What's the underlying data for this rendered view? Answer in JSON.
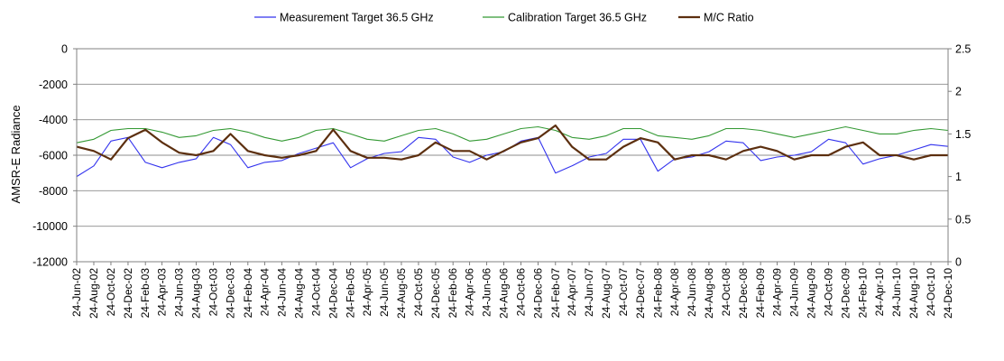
{
  "chart_data": {
    "type": "line",
    "title": "",
    "ylabel": "AMSR-E Radiance",
    "y2label": "",
    "ylim": [
      -12000,
      0
    ],
    "y2lim": [
      0,
      2.5
    ],
    "yticks": [
      0,
      -2000,
      -4000,
      -6000,
      -8000,
      -10000,
      -12000
    ],
    "y2ticks": [
      "2.5",
      "2",
      "1.5",
      "1",
      "0.5",
      "0"
    ],
    "grid": true,
    "legend_position": "top",
    "x_start": "2002-06-24",
    "x_end": "2010-12-24",
    "x_tick_labels": [
      "24-Jun-02",
      "24-Aug-02",
      "24-Oct-02",
      "24-Dec-02",
      "24-Feb-03",
      "24-Apr-03",
      "24-Jun-03",
      "24-Aug-03",
      "24-Oct-03",
      "24-Dec-03",
      "24-Feb-04",
      "24-Apr-04",
      "24-Jun-04",
      "24-Aug-04",
      "24-Oct-04",
      "24-Dec-04",
      "24-Feb-05",
      "24-Apr-05",
      "24-Jun-05",
      "24-Aug-05",
      "24-Oct-05",
      "24-Dec-05",
      "24-Feb-06",
      "24-Apr-06",
      "24-Jun-06",
      "24-Aug-06",
      "24-Oct-06",
      "24-Dec-06",
      "24-Feb-07",
      "24-Apr-07",
      "24-Jun-07",
      "24-Aug-07",
      "24-Oct-07",
      "24-Dec-07",
      "24-Feb-08",
      "24-Apr-08",
      "24-Jun-08",
      "24-Aug-08",
      "24-Oct-08",
      "24-Dec-08",
      "24-Feb-09",
      "24-Apr-09",
      "24-Jun-09",
      "24-Aug-09",
      "24-Oct-09",
      "24-Dec-09",
      "24-Feb-10",
      "24-Apr-10",
      "24-Jun-10",
      "24-Aug-10",
      "24-Oct-10",
      "24-Dec-10"
    ],
    "series": [
      {
        "name": "Measurement Target 36.5 GHz",
        "axis": "left",
        "color": "#3333ee",
        "x": [
          "2002-06-24",
          "2002-08-24",
          "2002-10-24",
          "2002-12-24",
          "2003-02-24",
          "2003-04-24",
          "2003-06-24",
          "2003-08-24",
          "2003-10-24",
          "2003-12-24",
          "2004-02-24",
          "2004-04-24",
          "2004-06-24",
          "2004-08-24",
          "2004-10-24",
          "2004-12-24",
          "2005-02-24",
          "2005-04-24",
          "2005-06-24",
          "2005-08-24",
          "2005-10-24",
          "2005-12-24",
          "2006-02-24",
          "2006-04-24",
          "2006-06-24",
          "2006-08-24",
          "2006-10-24",
          "2006-12-24",
          "2007-02-24",
          "2007-04-24",
          "2007-06-24",
          "2007-08-24",
          "2007-10-24",
          "2007-12-24",
          "2008-02-24",
          "2008-04-24",
          "2008-06-24",
          "2008-08-24",
          "2008-10-24",
          "2008-12-24",
          "2009-02-24",
          "2009-04-24",
          "2009-06-24",
          "2009-08-24",
          "2009-10-24",
          "2009-12-24",
          "2010-02-24",
          "2010-04-24",
          "2010-06-24",
          "2010-08-24",
          "2010-10-24",
          "2010-12-24"
        ],
        "y": [
          -7200,
          -6600,
          -5200,
          -5000,
          -6400,
          -6700,
          -6400,
          -6200,
          -5000,
          -5400,
          -6700,
          -6400,
          -6300,
          -5900,
          -5600,
          -5300,
          -6700,
          -6200,
          -5900,
          -5800,
          -5000,
          -5100,
          -6100,
          -6400,
          -6000,
          -5800,
          -5200,
          -5000,
          -7000,
          -6600,
          -6100,
          -5900,
          -5100,
          -5100,
          -6900,
          -6200,
          -6100,
          -5800,
          -5200,
          -5300,
          -6300,
          -6100,
          -6000,
          -5800,
          -5100,
          -5300,
          -6500,
          -6200,
          -6000,
          -5700,
          -5400,
          -5500
        ]
      },
      {
        "name": "Calibration Target 36.5 GHz",
        "axis": "left",
        "color": "#339933",
        "x": [
          "2002-06-24",
          "2002-08-24",
          "2002-10-24",
          "2002-12-24",
          "2003-02-24",
          "2003-04-24",
          "2003-06-24",
          "2003-08-24",
          "2003-10-24",
          "2003-12-24",
          "2004-02-24",
          "2004-04-24",
          "2004-06-24",
          "2004-08-24",
          "2004-10-24",
          "2004-12-24",
          "2005-02-24",
          "2005-04-24",
          "2005-06-24",
          "2005-08-24",
          "2005-10-24",
          "2005-12-24",
          "2006-02-24",
          "2006-04-24",
          "2006-06-24",
          "2006-08-24",
          "2006-10-24",
          "2006-12-24",
          "2007-02-24",
          "2007-04-24",
          "2007-06-24",
          "2007-08-24",
          "2007-10-24",
          "2007-12-24",
          "2008-02-24",
          "2008-04-24",
          "2008-06-24",
          "2008-08-24",
          "2008-10-24",
          "2008-12-24",
          "2009-02-24",
          "2009-04-24",
          "2009-06-24",
          "2009-08-24",
          "2009-10-24",
          "2009-12-24",
          "2010-02-24",
          "2010-04-24",
          "2010-06-24",
          "2010-08-24",
          "2010-10-24",
          "2010-12-24"
        ],
        "y": [
          -5300,
          -5100,
          -4600,
          -4500,
          -4500,
          -4700,
          -5000,
          -4900,
          -4600,
          -4500,
          -4700,
          -5000,
          -5200,
          -5000,
          -4600,
          -4500,
          -4800,
          -5100,
          -5200,
          -4900,
          -4600,
          -4500,
          -4800,
          -5200,
          -5100,
          -4800,
          -4500,
          -4400,
          -4600,
          -5000,
          -5100,
          -4900,
          -4500,
          -4500,
          -4900,
          -5000,
          -5100,
          -4900,
          -4500,
          -4500,
          -4600,
          -4800,
          -5000,
          -4800,
          -4600,
          -4400,
          -4600,
          -4800,
          -4800,
          -4600,
          -4500,
          -4600
        ]
      },
      {
        "name": "M/C Ratio",
        "axis": "right",
        "color": "#5c2f0f",
        "x": [
          "2002-06-24",
          "2002-08-24",
          "2002-10-24",
          "2002-12-24",
          "2003-02-24",
          "2003-04-24",
          "2003-06-24",
          "2003-08-24",
          "2003-10-24",
          "2003-12-24",
          "2004-02-24",
          "2004-04-24",
          "2004-06-24",
          "2004-08-24",
          "2004-10-24",
          "2004-12-24",
          "2005-02-24",
          "2005-04-24",
          "2005-06-24",
          "2005-08-24",
          "2005-10-24",
          "2005-12-24",
          "2006-02-24",
          "2006-04-24",
          "2006-06-24",
          "2006-08-24",
          "2006-10-24",
          "2006-12-24",
          "2007-02-24",
          "2007-04-24",
          "2007-06-24",
          "2007-08-24",
          "2007-10-24",
          "2007-12-24",
          "2008-02-24",
          "2008-04-24",
          "2008-06-24",
          "2008-08-24",
          "2008-10-24",
          "2008-12-24",
          "2009-02-24",
          "2009-04-24",
          "2009-06-24",
          "2009-08-24",
          "2009-10-24",
          "2009-12-24",
          "2010-02-24",
          "2010-04-24",
          "2010-06-24",
          "2010-08-24",
          "2010-10-24",
          "2010-12-24"
        ],
        "y": [
          1.35,
          1.3,
          1.2,
          1.45,
          1.55,
          1.4,
          1.28,
          1.25,
          1.3,
          1.5,
          1.3,
          1.25,
          1.22,
          1.25,
          1.3,
          1.55,
          1.3,
          1.22,
          1.22,
          1.2,
          1.25,
          1.4,
          1.3,
          1.3,
          1.2,
          1.3,
          1.4,
          1.45,
          1.6,
          1.35,
          1.2,
          1.2,
          1.35,
          1.45,
          1.4,
          1.2,
          1.25,
          1.25,
          1.2,
          1.3,
          1.35,
          1.3,
          1.2,
          1.25,
          1.25,
          1.35,
          1.4,
          1.25,
          1.25,
          1.2,
          1.25,
          1.25
        ]
      }
    ]
  }
}
